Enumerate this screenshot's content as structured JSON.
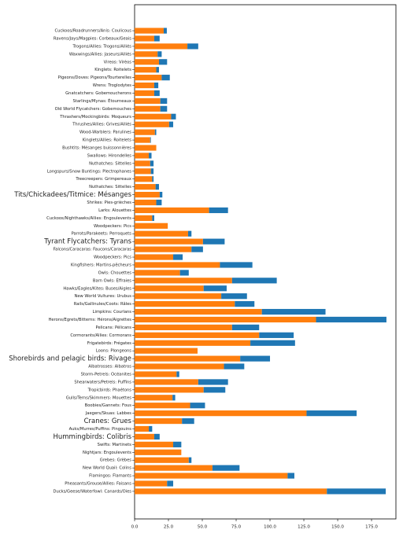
{
  "chart_data": {
    "type": "stacked-barh",
    "categories": [
      "Cuckoos/Roadrunners/Anis: Coulicous",
      "Ravens/Jays/Magpies: Corbeaux/Geais",
      "Trogons/Allies: Trogons/Alliés",
      "Waxwings/Allies: Jaseurs/Alliés",
      "Vireos: Viréos",
      "Kinglets: Roitelets",
      "Pigeons/Doves: Pigeons/Tourterelles",
      "Wrens: Troglodytes",
      "Gnatcatchers: Gobemoucherons",
      "Starlings/Mynas: Étourneaux",
      "Old World Flycatchers: Gobemouches",
      "Thrashers/Mockingbirds: Moqueurs",
      "Thrushes/Allies: Grives/Alliés",
      "Wood-Warblers: Parulines",
      "Kinglets/Allies: Roitelets",
      "Bushtits: Mésanges buissonnières",
      "Swallows: Hirondelles",
      "Nuthatches: Sittelles",
      "Longspurs/Snow Buntings: Plectrophanes",
      "Treecreepers: Grimpereaux",
      "Nuthatches: Sittelles",
      "Tits/Chickadees/Titmice: Mésanges",
      "Shrikes: Pies-grièches",
      "Larks: Alouettes",
      "Cuckoos/Nighthawks/Allies: Engoulevents",
      "Woodpeckers: Pics",
      "Parrots/Parakeets: Perroquets",
      "Tyrant Flycatchers: Tyrans",
      "Falcons/Caracaras: Faucons/Caracaras",
      "Woodpeckers: Pics",
      "Kingfishers: Martins-pêcheurs",
      "Owls: Chouettes",
      "Barn Owls: Effraies",
      "Hawks/Eagles/Kites: Buses/Aigles",
      "New World Vultures: Urubus",
      "Rails/Gallinules/Coots: Râles",
      "Limpkins: Courlans",
      "Herons/Egrets/Bitterns: Hérons/Aigrettes",
      "Pelicans: Pélicans",
      "Cormorants/Allies: Cormorans",
      "Frigatebirds: Frégates",
      "Loons: Plongeons",
      "Shorebirds and pelagic birds: Rivage",
      "Albatrosses: Albatros",
      "Storm-Petrels: Océanites",
      "Shearwaters/Petrels: Puffins",
      "Tropicbirds: Phaétons",
      "Gulls/Terns/Skimmers: Mouettes",
      "Boobies/Gannets: Fous",
      "Jaegers/Skuas: Labbes",
      "Cranes: Grues",
      "Auks/Murres/Puffins: Pingouins",
      "Hummingbirds: Colibris",
      "Swifts: Martinets",
      "Nightjars: Engoulevents",
      "Grebes: Grèbes",
      "New World Quail: Colins",
      "Flamingos: Flamants",
      "Pheasants/Grouse/Allies: Faisans",
      "Ducks/Geese/Waterfowl: Canards/Oies"
    ],
    "series": [
      {
        "color": "#ff7f0e",
        "values": [
          21.5,
          14.5,
          39,
          17,
          18,
          16,
          20,
          14.5,
          14.5,
          19,
          19,
          27,
          25.5,
          15,
          11.5,
          16,
          10.5,
          11.5,
          12,
          13,
          15.5,
          18.5,
          16,
          55,
          13,
          24.5,
          39.5,
          50.5,
          42,
          28.5,
          63,
          33.5,
          72,
          51,
          64,
          74,
          94,
          134,
          72,
          92,
          85.5,
          46.5,
          78,
          66,
          31,
          47,
          51,
          28,
          41,
          127,
          35,
          10.5,
          14.5,
          28.5,
          34.5,
          40,
          57.5,
          113,
          24,
          142
        ]
      },
      {
        "color": "#1f77b4",
        "values": [
          2.3,
          4,
          8,
          3,
          6,
          2,
          6,
          3,
          4,
          5,
          5,
          3.5,
          3,
          1,
          0.5,
          0,
          2,
          2.5,
          2,
          1,
          2.5,
          2,
          4,
          14,
          1.5,
          0,
          2.5,
          16,
          8.5,
          7,
          24,
          6.5,
          33,
          17,
          19,
          14.5,
          47,
          52,
          20,
          25.5,
          33,
          0,
          22,
          15,
          2,
          22,
          16,
          2,
          11,
          37,
          9,
          2.5,
          4,
          6,
          0,
          2,
          20,
          5,
          4.5,
          43.5
        ]
      }
    ],
    "xlim": [
      0,
      193
    ],
    "xticks": [
      {
        "value": 0,
        "label": "0.0"
      },
      {
        "value": 25,
        "label": "25.0"
      },
      {
        "value": 50,
        "label": "50.0"
      },
      {
        "value": 75,
        "label": "75.0"
      },
      {
        "value": 100,
        "label": "100.0"
      },
      {
        "value": 125,
        "label": "125.0"
      },
      {
        "value": 150,
        "label": "150.0"
      },
      {
        "value": 175,
        "label": "175.0"
      }
    ]
  }
}
